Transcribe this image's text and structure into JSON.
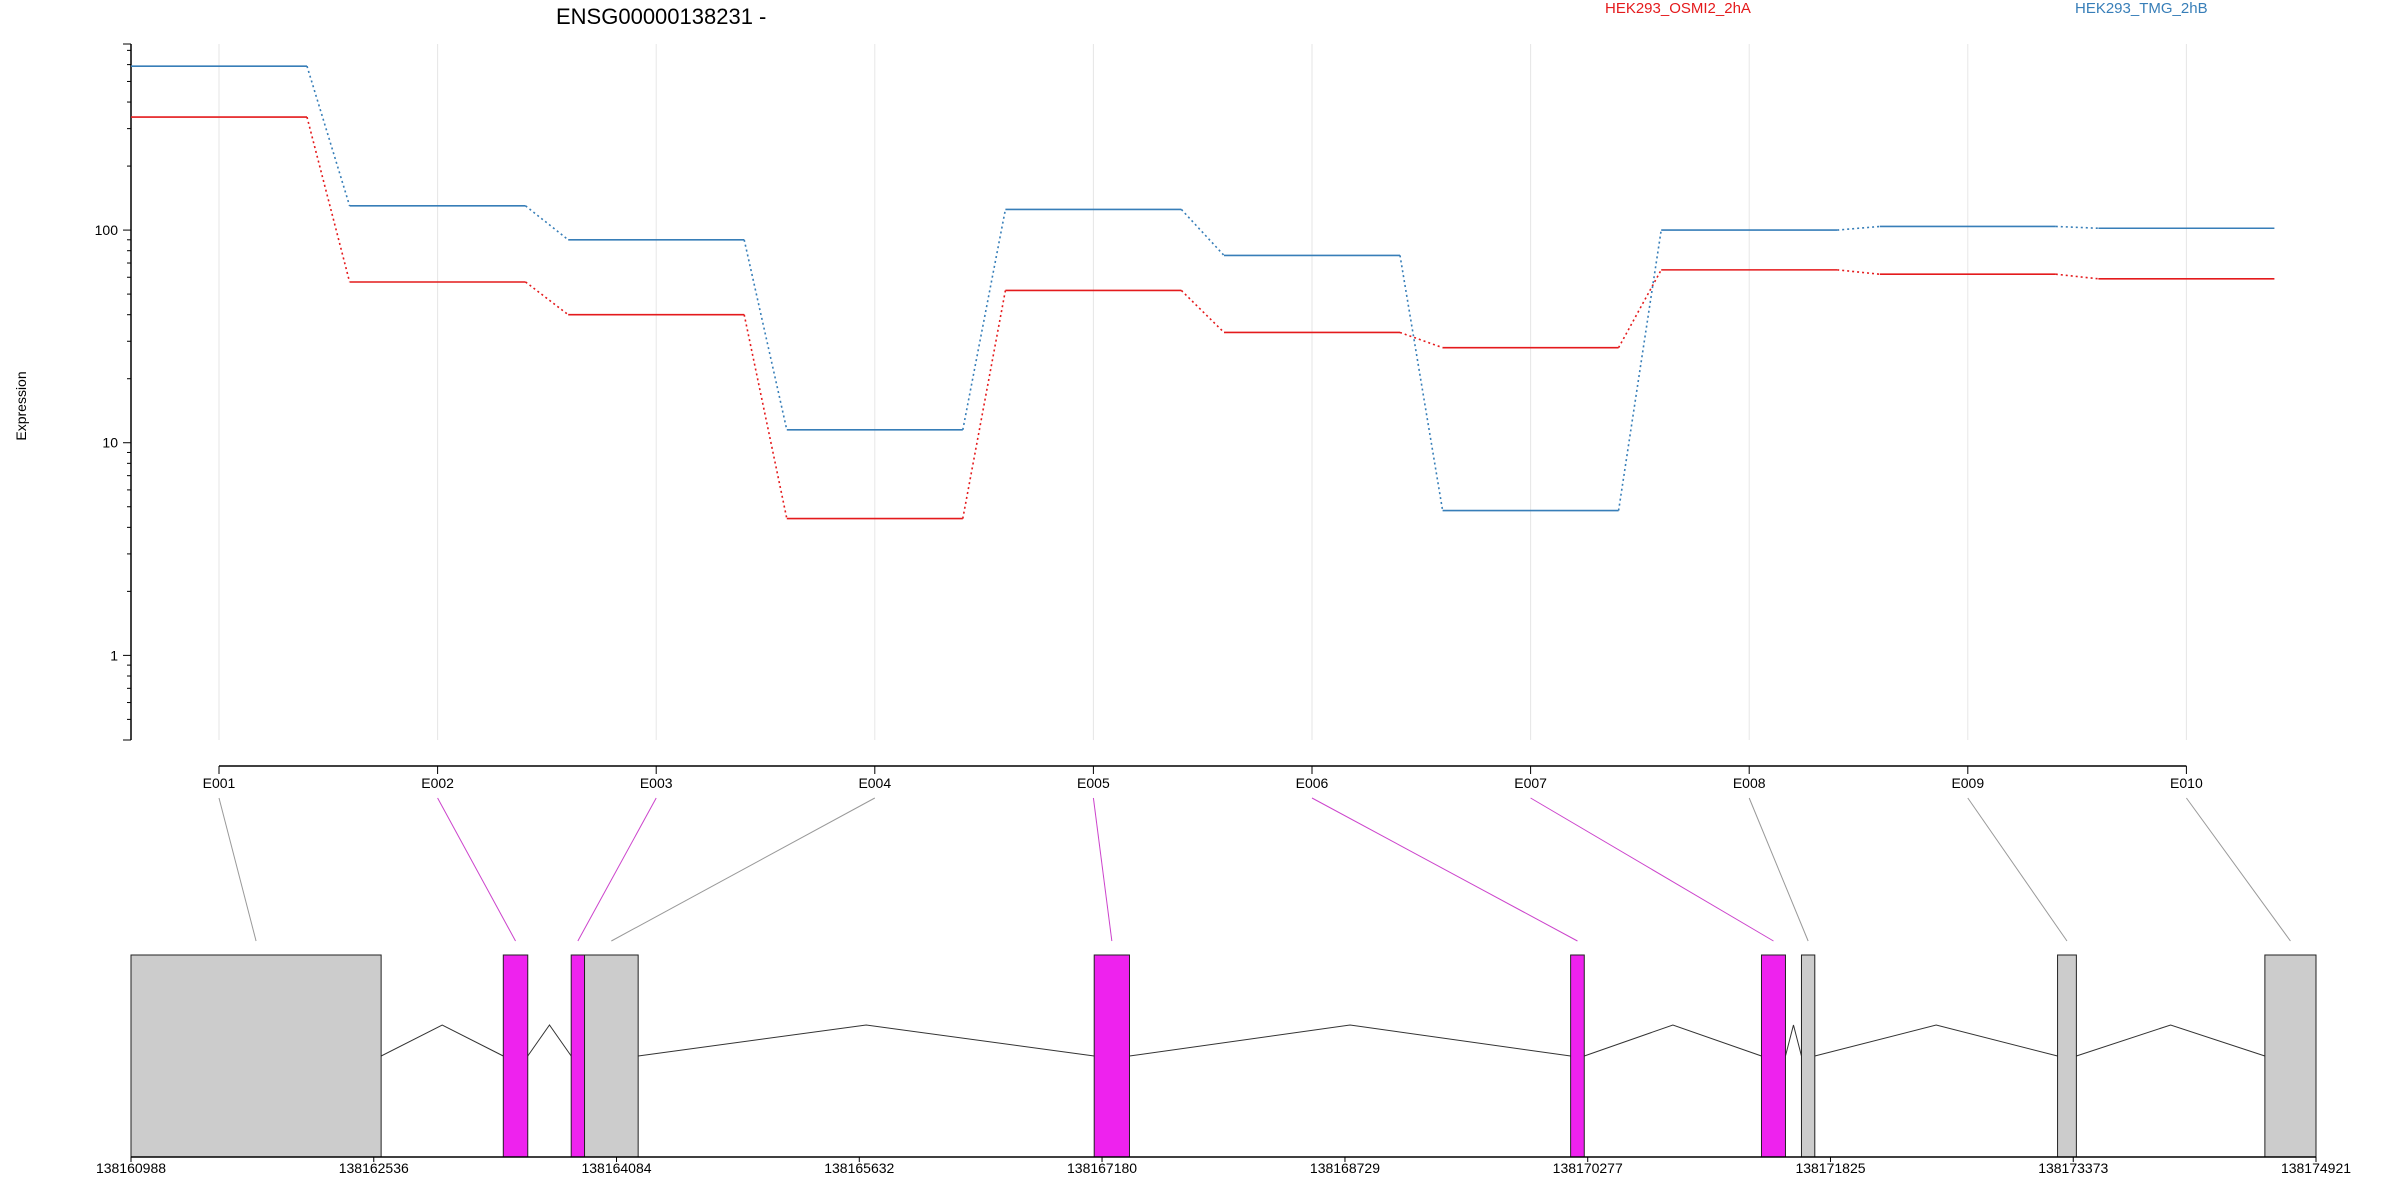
{
  "chart_data": {
    "type": "line",
    "title": "ENSG00000138231 -",
    "ylabel": "Expression",
    "xlabel": "",
    "y_scale": "log10",
    "ylim": [
      0.4,
      750
    ],
    "y_ticks": [
      "1",
      "10",
      "100"
    ],
    "grid": "vertical lines at exon ticks",
    "categories": [
      "E001",
      "E002",
      "E003",
      "E004",
      "E005",
      "E006",
      "E007",
      "E008",
      "E009",
      "E010"
    ],
    "series": [
      {
        "name": "HEK293_OSMI2_2hA",
        "color": "#e41a1c",
        "values": [
          340,
          57,
          40,
          4.4,
          52,
          33,
          28,
          65,
          62,
          59
        ]
      },
      {
        "name": "HEK293_TMG_2hB",
        "color": "#377eb8",
        "values": [
          590,
          130,
          90,
          11.5,
          125,
          76,
          4.8,
          100,
          104,
          102
        ]
      }
    ],
    "gene_model": {
      "coordinate_ticks": [
        "138160988",
        "138162536",
        "138164084",
        "138165632",
        "138167180",
        "138168729",
        "138170277",
        "138171825",
        "138173373",
        "138174921"
      ],
      "genome_range": [
        138160988,
        138174921
      ],
      "exons": [
        {
          "start": 138160988,
          "end": 138162583,
          "color": "#cccccc",
          "feature": "E001"
        },
        {
          "start": 138163362,
          "end": 138163518,
          "color": "#ee22ee",
          "feature": "E002"
        },
        {
          "start": 138163795,
          "end": 138163880,
          "color": "#ee22ee",
          "feature": "E003"
        },
        {
          "start": 138163880,
          "end": 138164222,
          "color": "#cccccc",
          "feature": "E004"
        },
        {
          "start": 138167130,
          "end": 138167355,
          "color": "#ee22ee",
          "feature": "E005"
        },
        {
          "start": 138170168,
          "end": 138170255,
          "color": "#ee22ee",
          "feature": "E006"
        },
        {
          "start": 138171385,
          "end": 138171538,
          "color": "#ee22ee",
          "feature": "E007"
        },
        {
          "start": 138171640,
          "end": 138171725,
          "color": "#cccccc",
          "feature": "E008"
        },
        {
          "start": 138173273,
          "end": 138173393,
          "color": "#cccccc",
          "feature": "E009"
        },
        {
          "start": 138174595,
          "end": 138174921,
          "color": "#cccccc",
          "feature": "E010"
        }
      ]
    },
    "colors": {
      "highlight_exon": "#ee22ee",
      "normal_exon": "#cccccc",
      "connector_highlight": "#cc44cc",
      "connector_normal": "#999999"
    }
  }
}
